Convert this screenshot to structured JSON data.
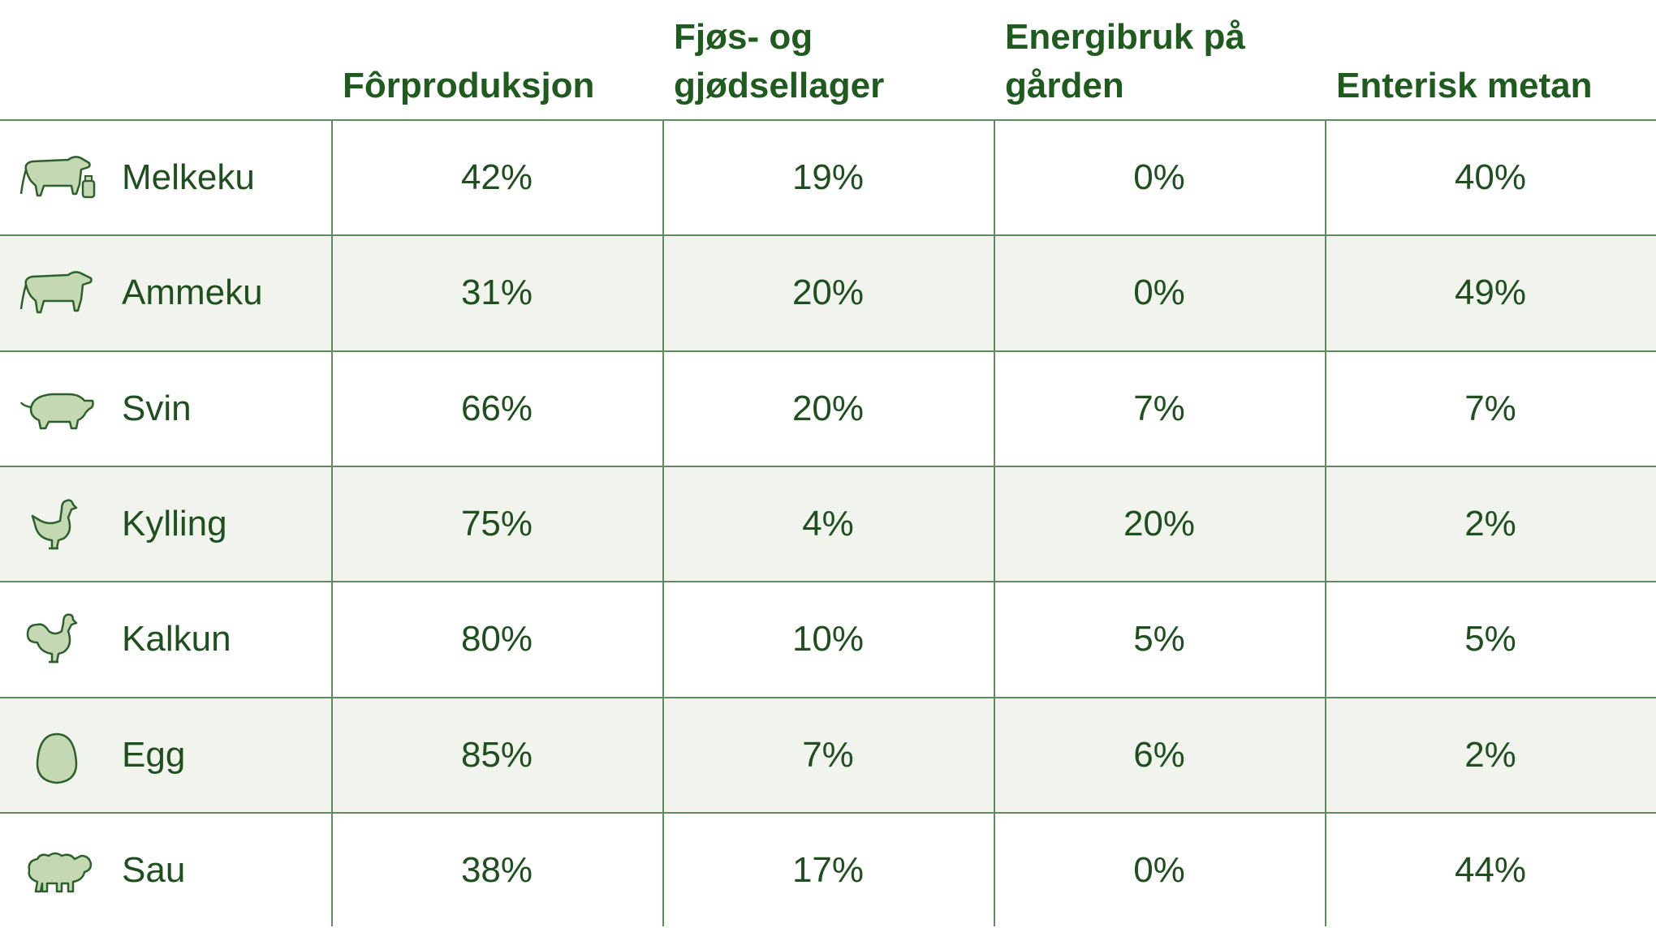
{
  "chart_data": {
    "type": "table",
    "columns": [
      "Fôrproduksjon",
      "Fjøs- og\ngjødsellager",
      "Energibruk på\ngården",
      "Enterisk metan"
    ],
    "rows": [
      {
        "label": "Melkeku",
        "icon": "dairy-cow-icon",
        "values": [
          "42%",
          "19%",
          "0%",
          "40%"
        ]
      },
      {
        "label": "Ammeku",
        "icon": "beef-cow-icon",
        "values": [
          "31%",
          "20%",
          "0%",
          "49%"
        ]
      },
      {
        "label": "Svin",
        "icon": "pig-icon",
        "values": [
          "66%",
          "20%",
          "7%",
          "7%"
        ]
      },
      {
        "label": "Kylling",
        "icon": "chicken-icon",
        "values": [
          "75%",
          "4%",
          "20%",
          "2%"
        ]
      },
      {
        "label": "Kalkun",
        "icon": "turkey-icon",
        "values": [
          "80%",
          "10%",
          "5%",
          "5%"
        ]
      },
      {
        "label": "Egg",
        "icon": "egg-icon",
        "values": [
          "85%",
          "7%",
          "6%",
          "2%"
        ]
      },
      {
        "label": "Sau",
        "icon": "sheep-icon",
        "values": [
          "38%",
          "17%",
          "0%",
          "44%"
        ]
      }
    ]
  },
  "colors": {
    "text": "#1f4f1f",
    "header_text": "#1f5a1f",
    "rule": "#5f8a5f",
    "row_shade": "#f1f4ec",
    "icon_fill": "#c5d8b4",
    "icon_stroke": "#2d5f2d"
  }
}
